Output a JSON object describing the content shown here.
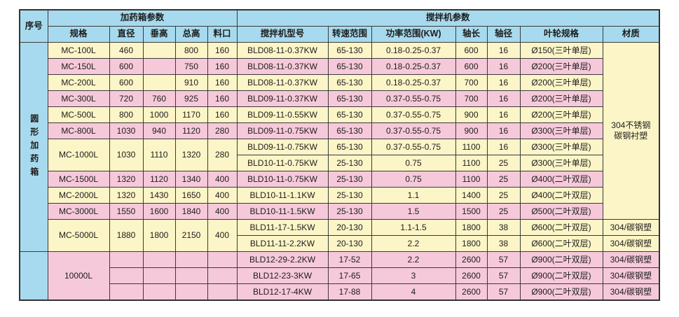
{
  "table": {
    "colors": {
      "header_blue": "#a7daee",
      "row_yellow": "#fcf5c7",
      "row_pink": "#f6c9da",
      "border": "#3a3a3a"
    },
    "header": {
      "seq": "序号",
      "group_tank": "加药箱参数",
      "group_mixer": "搅拌机参数",
      "sub": [
        "规格",
        "直径",
        "垂高",
        "总高",
        "料口",
        "搅拌机型号",
        "转速范围",
        "功率范围(KW)",
        "轴长",
        "轴径",
        "叶轮规格",
        "材质"
      ]
    },
    "rows": [
      [
        {
          "t": "圆形加药箱",
          "rs": 13,
          "c": "b",
          "v": true
        },
        {
          "t": "MC-100L",
          "c": "y"
        },
        {
          "t": "460",
          "c": "y"
        },
        {
          "t": "",
          "c": "y"
        },
        {
          "t": "800",
          "c": "y"
        },
        {
          "t": "160",
          "c": "y"
        },
        {
          "t": "BLD08-11-0.37KW",
          "c": "y"
        },
        {
          "t": "65-130",
          "c": "y"
        },
        {
          "t": "0.18-0.25-0.37",
          "c": "y"
        },
        {
          "t": "600",
          "c": "y"
        },
        {
          "t": "16",
          "c": "y"
        },
        {
          "t": "Ø150(三叶单层)",
          "c": "y"
        },
        {
          "t": "304不锈钢\n碳钢衬塑",
          "rs": 11,
          "c": "y"
        }
      ],
      [
        {
          "t": "MC-150L",
          "c": "p"
        },
        {
          "t": "600",
          "c": "p"
        },
        {
          "t": "",
          "c": "p"
        },
        {
          "t": "750",
          "c": "p"
        },
        {
          "t": "160",
          "c": "p"
        },
        {
          "t": "BLD08-11-0.37KW",
          "c": "p"
        },
        {
          "t": "65-130",
          "c": "p"
        },
        {
          "t": "0.18-0.25-0.37",
          "c": "p"
        },
        {
          "t": "600",
          "c": "p"
        },
        {
          "t": "16",
          "c": "p"
        },
        {
          "t": "Ø200(三叶单层)",
          "c": "p"
        }
      ],
      [
        {
          "t": "MC-200L",
          "c": "y"
        },
        {
          "t": "600",
          "c": "y"
        },
        {
          "t": "",
          "c": "y"
        },
        {
          "t": "910",
          "c": "y"
        },
        {
          "t": "160",
          "c": "y"
        },
        {
          "t": "BLD08-11-0.37KW",
          "c": "y"
        },
        {
          "t": "65-130",
          "c": "y"
        },
        {
          "t": "0.18-0.25-0.37",
          "c": "y"
        },
        {
          "t": "700",
          "c": "y"
        },
        {
          "t": "16",
          "c": "y"
        },
        {
          "t": "Ø200(三叶单层)",
          "c": "y"
        }
      ],
      [
        {
          "t": "MC-300L",
          "c": "p"
        },
        {
          "t": "720",
          "c": "p"
        },
        {
          "t": "760",
          "c": "p"
        },
        {
          "t": "925",
          "c": "p"
        },
        {
          "t": "160",
          "c": "p"
        },
        {
          "t": "BLD09-11-0.37KW",
          "c": "p"
        },
        {
          "t": "65-130",
          "c": "p"
        },
        {
          "t": "0.37-0.55-0.75",
          "c": "p"
        },
        {
          "t": "700",
          "c": "p"
        },
        {
          "t": "16",
          "c": "p"
        },
        {
          "t": "Ø200(三叶单层)",
          "c": "p"
        }
      ],
      [
        {
          "t": "MC-500L",
          "c": "y"
        },
        {
          "t": "800",
          "c": "y"
        },
        {
          "t": "1000",
          "c": "y"
        },
        {
          "t": "1170",
          "c": "y"
        },
        {
          "t": "160",
          "c": "y"
        },
        {
          "t": "BLD09-11-0.55KW",
          "c": "y"
        },
        {
          "t": "65-130",
          "c": "y"
        },
        {
          "t": "0.37-0.55-0.75",
          "c": "y"
        },
        {
          "t": "900",
          "c": "y"
        },
        {
          "t": "16",
          "c": "y"
        },
        {
          "t": "Ø200(三叶单层)",
          "c": "y"
        }
      ],
      [
        {
          "t": "MC-800L",
          "c": "p"
        },
        {
          "t": "1030",
          "c": "p"
        },
        {
          "t": "940",
          "c": "p"
        },
        {
          "t": "1120",
          "c": "p"
        },
        {
          "t": "280",
          "c": "p"
        },
        {
          "t": "BLD09-11-0.75KW",
          "c": "p"
        },
        {
          "t": "65-130",
          "c": "p"
        },
        {
          "t": "0.37-0.55-0.75",
          "c": "p"
        },
        {
          "t": "900",
          "c": "p"
        },
        {
          "t": "16",
          "c": "p"
        },
        {
          "t": "Ø300(三叶单层)",
          "c": "p"
        }
      ],
      [
        {
          "t": "MC-1000L",
          "rs": 2,
          "c": "y"
        },
        {
          "t": "1030",
          "rs": 2,
          "c": "y"
        },
        {
          "t": "1110",
          "rs": 2,
          "c": "y"
        },
        {
          "t": "1320",
          "rs": 2,
          "c": "y"
        },
        {
          "t": "280",
          "rs": 2,
          "c": "y"
        },
        {
          "t": "BLD09-11-0.75KW",
          "c": "y"
        },
        {
          "t": "65-130",
          "c": "y"
        },
        {
          "t": "0.37-0.55-0.75",
          "c": "y"
        },
        {
          "t": "1100",
          "c": "y"
        },
        {
          "t": "16",
          "c": "y"
        },
        {
          "t": "Ø300(三叶单层)",
          "c": "y"
        }
      ],
      [
        {
          "t": "BLD10-11-0.75KW",
          "c": "y"
        },
        {
          "t": "25-130",
          "c": "y"
        },
        {
          "t": "0.75",
          "c": "y"
        },
        {
          "t": "1100",
          "c": "y"
        },
        {
          "t": "25",
          "c": "y"
        },
        {
          "t": "Ø300(三叶单层)",
          "c": "y"
        }
      ],
      [
        {
          "t": "MC-1500L",
          "c": "p"
        },
        {
          "t": "1320",
          "c": "p"
        },
        {
          "t": "1120",
          "c": "p"
        },
        {
          "t": "1340",
          "c": "p"
        },
        {
          "t": "400",
          "c": "p"
        },
        {
          "t": "BLD10-11-0.75KW",
          "c": "p"
        },
        {
          "t": "25-130",
          "c": "p"
        },
        {
          "t": "0.75",
          "c": "p"
        },
        {
          "t": "1100",
          "c": "p"
        },
        {
          "t": "25",
          "c": "p"
        },
        {
          "t": "Ø400(二叶双层)",
          "c": "p"
        }
      ],
      [
        {
          "t": "MC-2000L",
          "c": "y"
        },
        {
          "t": "1320",
          "c": "y"
        },
        {
          "t": "1430",
          "c": "y"
        },
        {
          "t": "1650",
          "c": "y"
        },
        {
          "t": "400",
          "c": "y"
        },
        {
          "t": "BLD10-11-1.1KW",
          "c": "y"
        },
        {
          "t": "25-130",
          "c": "y"
        },
        {
          "t": "1.1",
          "c": "y"
        },
        {
          "t": "1400",
          "c": "y"
        },
        {
          "t": "25",
          "c": "y"
        },
        {
          "t": "Ø400(二叶双层)",
          "c": "y"
        }
      ],
      [
        {
          "t": "MC-3000L",
          "c": "p"
        },
        {
          "t": "1550",
          "c": "p"
        },
        {
          "t": "1600",
          "c": "p"
        },
        {
          "t": "1840",
          "c": "p"
        },
        {
          "t": "400",
          "c": "p"
        },
        {
          "t": "BLD10-11-1.5KW",
          "c": "p"
        },
        {
          "t": "25-130",
          "c": "p"
        },
        {
          "t": "1.5",
          "c": "p"
        },
        {
          "t": "1500",
          "c": "p"
        },
        {
          "t": "25",
          "c": "p"
        },
        {
          "t": "Ø500(二叶双层)",
          "c": "p"
        }
      ],
      [
        {
          "t": "MC-5000L",
          "rs": 2,
          "c": "y"
        },
        {
          "t": "1880",
          "rs": 2,
          "c": "y"
        },
        {
          "t": "1800",
          "rs": 2,
          "c": "y"
        },
        {
          "t": "2150",
          "rs": 2,
          "c": "y"
        },
        {
          "t": "400",
          "rs": 2,
          "c": "y"
        },
        {
          "t": "BLD11-17-1.5KW",
          "c": "y"
        },
        {
          "t": "20-130",
          "c": "y"
        },
        {
          "t": "1.1-1.5",
          "c": "y"
        },
        {
          "t": "1800",
          "c": "y"
        },
        {
          "t": "38",
          "c": "y"
        },
        {
          "t": "Ø600(二叶双层)",
          "c": "y"
        },
        {
          "t": "304/碳钢塑",
          "c": "y"
        }
      ],
      [
        {
          "t": "BLD11-11-2.2KW",
          "c": "y"
        },
        {
          "t": "20-130",
          "c": "y"
        },
        {
          "t": "2.2",
          "c": "y"
        },
        {
          "t": "1800",
          "c": "y"
        },
        {
          "t": "38",
          "c": "y"
        },
        {
          "t": "Ø600(二叶双层)",
          "c": "y"
        },
        {
          "t": "304/碳钢塑",
          "c": "y"
        }
      ],
      [
        {
          "t": "",
          "rs": 3,
          "c": "b"
        },
        {
          "t": "10000L",
          "rs": 3,
          "c": "p"
        },
        {
          "t": "",
          "c": "p"
        },
        {
          "t": "",
          "c": "p"
        },
        {
          "t": "",
          "c": "p"
        },
        {
          "t": "",
          "c": "p"
        },
        {
          "t": "BLD12-29-2.2KW",
          "c": "p"
        },
        {
          "t": "17-52",
          "c": "p"
        },
        {
          "t": "2.2",
          "c": "p"
        },
        {
          "t": "2600",
          "c": "p"
        },
        {
          "t": "57",
          "c": "p"
        },
        {
          "t": "Ø900(二叶双层)",
          "c": "p"
        },
        {
          "t": "304/碳钢塑",
          "c": "p"
        }
      ],
      [
        {
          "t": "",
          "c": "p"
        },
        {
          "t": "",
          "c": "p"
        },
        {
          "t": "",
          "c": "p"
        },
        {
          "t": "",
          "c": "p"
        },
        {
          "t": "BLD12-23-3KW",
          "c": "p"
        },
        {
          "t": "17-65",
          "c": "p"
        },
        {
          "t": "3",
          "c": "p"
        },
        {
          "t": "2600",
          "c": "p"
        },
        {
          "t": "57",
          "c": "p"
        },
        {
          "t": "Ø900(二叶双层)",
          "c": "p"
        },
        {
          "t": "304/碳钢塑",
          "c": "p"
        }
      ],
      [
        {
          "t": "",
          "c": "p"
        },
        {
          "t": "",
          "c": "p"
        },
        {
          "t": "",
          "c": "p"
        },
        {
          "t": "",
          "c": "p"
        },
        {
          "t": "BLD12-17-4KW",
          "c": "p"
        },
        {
          "t": "17-88",
          "c": "p"
        },
        {
          "t": "4",
          "c": "p"
        },
        {
          "t": "2600",
          "c": "p"
        },
        {
          "t": "57",
          "c": "p"
        },
        {
          "t": "Ø900(二叶双层)",
          "c": "p"
        },
        {
          "t": "304/碳钢塑",
          "c": "p"
        }
      ]
    ]
  }
}
